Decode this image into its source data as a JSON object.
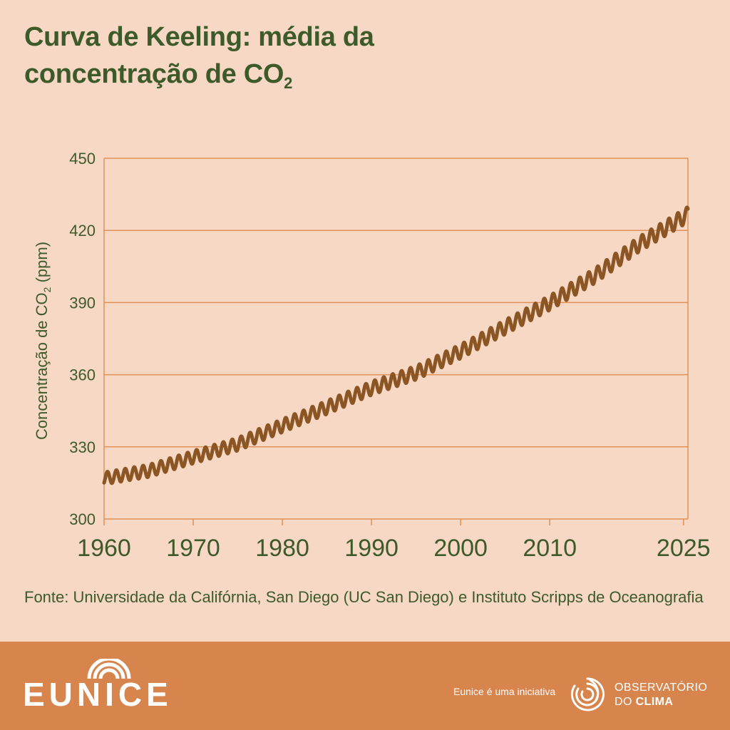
{
  "title": {
    "line1": "Curva de Keeling: média da",
    "line2_main": "concentração de CO",
    "line2_sub": "2"
  },
  "chart_data": {
    "type": "line",
    "title": "Curva de Keeling: média da concentração de CO2",
    "ylabel_main": "Concentração de CO",
    "ylabel_sub": "2",
    "ylabel_unit": " (ppm)",
    "xlabel": "",
    "x_range": [
      1960,
      2025.5
    ],
    "ylim": [
      300,
      450
    ],
    "y_ticks": [
      300,
      330,
      360,
      390,
      420,
      450
    ],
    "x_ticks": [
      1960,
      1970,
      1980,
      1990,
      2000,
      2010,
      2025
    ],
    "grid": "horizontal",
    "line_color": "#8b5524",
    "series": [
      {
        "annual_mean_by_year": [
          [
            1960,
            316.9
          ],
          [
            1965,
            320.0
          ],
          [
            1970,
            325.7
          ],
          [
            1975,
            331.1
          ],
          [
            1980,
            338.8
          ],
          [
            1985,
            346.4
          ],
          [
            1990,
            354.4
          ],
          [
            1995,
            360.8
          ],
          [
            2000,
            369.7
          ],
          [
            2005,
            379.8
          ],
          [
            2010,
            389.9
          ],
          [
            2015,
            401.0
          ],
          [
            2020,
            414.2
          ],
          [
            2025,
            425.5
          ]
        ],
        "seasonal_amplitude_ppm": 3.2
      }
    ]
  },
  "source": "Fonte: Universidade da Califórnia, San Diego (UC San Diego) e Instituto Scripps de Oceanografia",
  "footer": {
    "initiative_text": "Eunice é uma iniciativa",
    "org_line1": "OBSERVATÓRIO",
    "org_line2_a": "DO ",
    "org_line2_b": "CLIMA",
    "brand_logo": "EUNICE",
    "brand_icon": "eunice-logo",
    "org_icon": "observatorio-swirl-icon",
    "background_color": "#d8854d"
  }
}
